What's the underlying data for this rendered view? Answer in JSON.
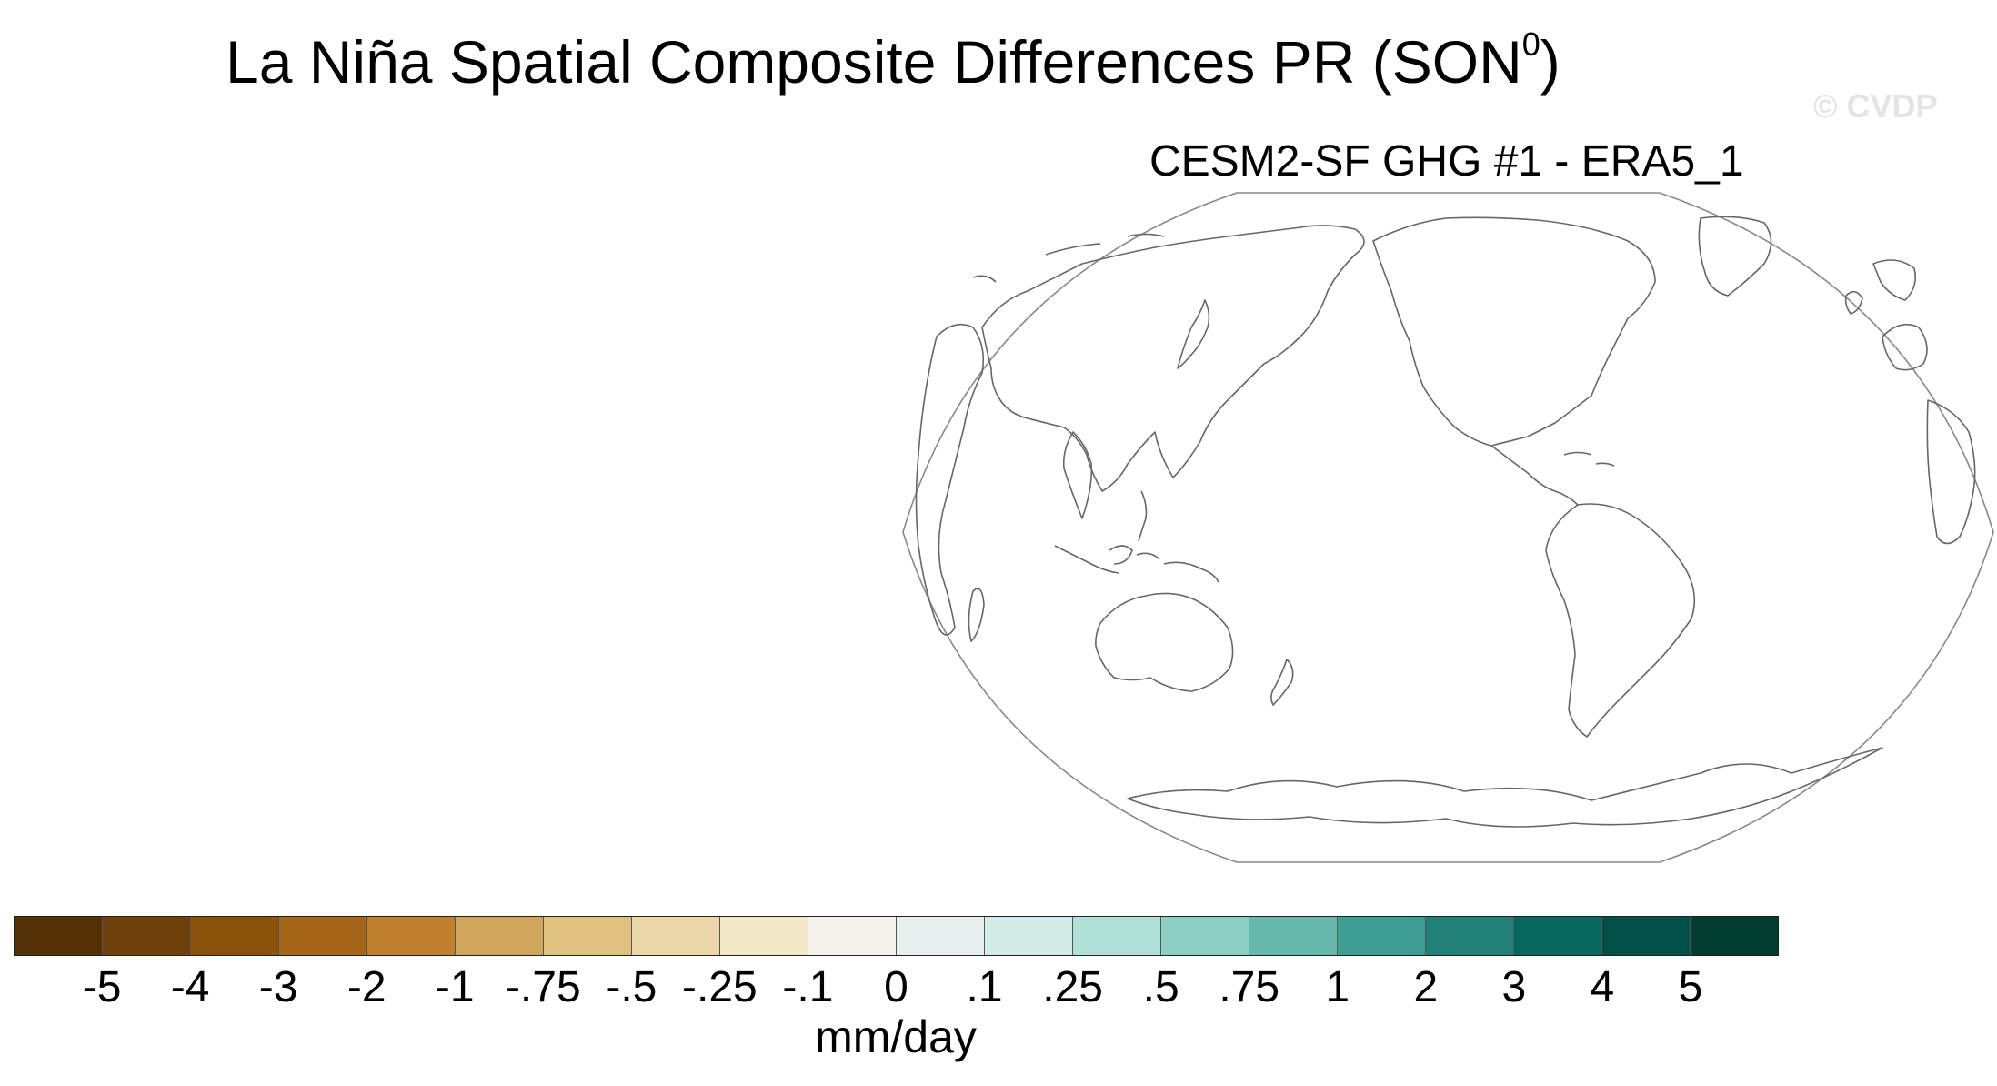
{
  "title": {
    "main": "La Niña Spatial Composite Differences PR (SON",
    "superscript": "0",
    "close": ")"
  },
  "watermark": "© CVDP",
  "panel": {
    "title": "CESM2-SF GHG #1 - ERA5_1"
  },
  "map": {
    "projection": "robinson-like",
    "central_longitude": 180,
    "outline_color": "#888888",
    "coast_color": "#666666",
    "fill_color": "#ffffff",
    "data_shown": "none"
  },
  "colorbar": {
    "units": "mm/day",
    "tick_labels": [
      "-5",
      "-4",
      "-3",
      "-2",
      "-1",
      "-.75",
      "-.5",
      "-.25",
      "-.1",
      "0",
      ".1",
      ".25",
      ".5",
      ".75",
      "1",
      "2",
      "3",
      "4",
      "5"
    ],
    "colors": [
      "#543005",
      "#6f400a",
      "#8c510a",
      "#a6661a",
      "#bf812d",
      "#d0a55c",
      "#dfc27d",
      "#ebd7a7",
      "#f3e9c9",
      "#f5f2ec",
      "#e7f0ef",
      "#d2ece8",
      "#b1e0d9",
      "#8dd0c3",
      "#66b8ab",
      "#3f9e93",
      "#218178",
      "#05675f",
      "#014f46",
      "#003c30"
    ]
  }
}
